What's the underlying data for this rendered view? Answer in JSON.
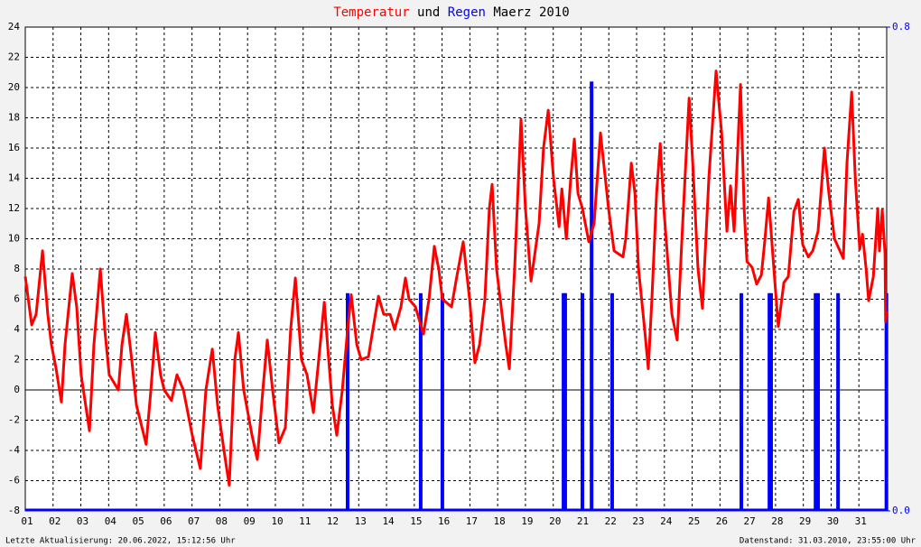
{
  "chart_data": {
    "type": "line",
    "title_series": [
      0,
      1
    ],
    "title_join": "und",
    "title": "Maerz 2010",
    "footer_left": "Letzte Aktualisierung: 20.06.2022, 15:12:56 Uhr",
    "footer_right": "Datenstand: 31.03.2010, 23:55:00 Uhr",
    "xlim": [
      1,
      32
    ],
    "xticks": [
      {
        "value": 1,
        "label": "01"
      },
      {
        "value": 2,
        "label": "02"
      },
      {
        "value": 3,
        "label": "03"
      },
      {
        "value": 4,
        "label": "04"
      },
      {
        "value": 5,
        "label": "05"
      },
      {
        "value": 6,
        "label": "06"
      },
      {
        "value": 7,
        "label": "07"
      },
      {
        "value": 8,
        "label": "08"
      },
      {
        "value": 9,
        "label": "09"
      },
      {
        "value": 10,
        "label": "10"
      },
      {
        "value": 11,
        "label": "11"
      },
      {
        "value": 12,
        "label": "12"
      },
      {
        "value": 13,
        "label": "13"
      },
      {
        "value": 14,
        "label": "14"
      },
      {
        "value": 15,
        "label": "15"
      },
      {
        "value": 16,
        "label": "16"
      },
      {
        "value": 17,
        "label": "17"
      },
      {
        "value": 18,
        "label": "18"
      },
      {
        "value": 19,
        "label": "19"
      },
      {
        "value": 20,
        "label": "20"
      },
      {
        "value": 21,
        "label": "21"
      },
      {
        "value": 22,
        "label": "22"
      },
      {
        "value": 23,
        "label": "23"
      },
      {
        "value": 24,
        "label": "24"
      },
      {
        "value": 25,
        "label": "25"
      },
      {
        "value": 26,
        "label": "26"
      },
      {
        "value": 27,
        "label": "27"
      },
      {
        "value": 28,
        "label": "28"
      },
      {
        "value": 29,
        "label": "29"
      },
      {
        "value": 30,
        "label": "30"
      },
      {
        "value": 31,
        "label": "31"
      }
    ],
    "ylim": [
      -8,
      24
    ],
    "yticks": [
      -8,
      -6,
      -4,
      -2,
      0,
      2,
      4,
      6,
      8,
      10,
      12,
      14,
      16,
      18,
      20,
      22,
      24
    ],
    "y2lim": [
      0,
      0.8
    ],
    "y2ticks": [
      {
        "value": 0,
        "label": "0.0"
      },
      {
        "value": 0.8,
        "label": "0.8"
      }
    ],
    "grid": true,
    "series": [
      {
        "name": "Temperatur",
        "color": "#ff0000",
        "x": [
          1.0,
          1.23,
          1.39,
          1.62,
          1.81,
          1.94,
          2.1,
          2.3,
          2.43,
          2.69,
          2.85,
          3.01,
          3.31,
          3.47,
          3.7,
          3.86,
          4.02,
          4.35,
          4.48,
          4.64,
          4.83,
          5.0,
          5.35,
          5.52,
          5.68,
          5.87,
          6.0,
          6.26,
          6.46,
          6.69,
          7.01,
          7.3,
          7.5,
          7.73,
          7.92,
          8.15,
          8.34,
          8.54,
          8.67,
          8.86,
          9.16,
          9.35,
          9.55,
          9.71,
          9.9,
          10.13,
          10.36,
          10.55,
          10.72,
          10.94,
          11.14,
          11.37,
          11.56,
          11.76,
          11.92,
          12.05,
          12.21,
          12.41,
          12.6,
          12.73,
          12.93,
          13.09,
          13.35,
          13.51,
          13.71,
          13.9,
          14.13,
          14.29,
          14.52,
          14.68,
          14.81,
          15.04,
          15.33,
          15.53,
          15.72,
          15.88,
          16.01,
          16.34,
          16.53,
          16.76,
          16.99,
          17.18,
          17.35,
          17.54,
          17.7,
          17.8,
          17.96,
          18.29,
          18.42,
          18.61,
          18.84,
          19.0,
          19.2,
          19.49,
          19.65,
          19.82,
          20.01,
          20.21,
          20.31,
          20.47,
          20.63,
          20.76,
          20.89,
          21.05,
          21.28,
          21.47,
          21.7,
          21.99,
          22.19,
          22.51,
          22.61,
          22.81,
          22.94,
          23.07,
          23.29,
          23.42,
          23.55,
          23.72,
          23.85,
          23.98,
          24.27,
          24.46,
          24.63,
          24.89,
          25.02,
          25.21,
          25.37,
          25.6,
          25.86,
          26.06,
          26.25,
          26.38,
          26.51,
          26.74,
          26.87,
          26.97,
          27.16,
          27.32,
          27.49,
          27.62,
          27.75,
          27.94,
          28.1,
          28.3,
          28.46,
          28.66,
          28.82,
          28.98,
          29.18,
          29.34,
          29.53,
          29.76,
          29.92,
          30.12,
          30.44,
          30.57,
          30.74,
          30.87,
          31.03,
          31.13,
          31.26,
          31.35,
          31.52,
          31.68,
          31.74,
          31.84,
          31.94,
          31.96,
          31.99
        ],
        "values": [
          7.5,
          4.3,
          5,
          9.2,
          5,
          3,
          1.5,
          -0.8,
          3,
          7.7,
          5.5,
          1,
          -2.7,
          3,
          8,
          4,
          1,
          0,
          3,
          5,
          2,
          -1,
          -3.6,
          0,
          3.8,
          1,
          0,
          -0.7,
          1,
          0,
          -3,
          -5.2,
          0,
          2.7,
          -1,
          -4,
          -6.3,
          2,
          3.8,
          0,
          -3,
          -4.6,
          0,
          3.3,
          0,
          -3.5,
          -2.5,
          4,
          7.4,
          2,
          1,
          -1.5,
          2,
          5.8,
          2,
          -1,
          -3,
          0,
          4,
          6.3,
          3,
          2,
          2.2,
          4,
          6.2,
          5,
          5,
          4,
          5.5,
          7.4,
          6,
          5.5,
          3.7,
          6,
          9.5,
          8,
          6,
          5.5,
          7.5,
          9.8,
          6,
          1.8,
          3,
          6,
          12,
          13.6,
          8,
          3,
          1.4,
          8,
          17.9,
          12,
          7.2,
          11,
          16,
          18.5,
          14,
          10.8,
          13.3,
          10,
          14,
          16.6,
          13,
          12,
          9.8,
          11,
          17,
          12,
          9.2,
          8.8,
          10,
          15,
          13,
          8,
          4,
          1.4,
          6,
          13,
          16.3,
          12,
          5,
          3.3,
          10,
          19.3,
          15,
          8,
          5.4,
          14,
          21.1,
          17,
          10.5,
          13.5,
          10.5,
          20.2,
          12,
          8.5,
          8.1,
          7,
          7.6,
          10,
          12.7,
          8,
          4.2,
          7.1,
          7.5,
          11.8,
          12.6,
          9.6,
          8.8,
          9.2,
          10.5,
          16,
          13,
          10,
          8.7,
          15,
          19.7,
          14,
          9.3,
          10.3,
          8,
          5.9,
          7.5,
          12,
          9.2,
          11.9,
          9,
          4.5,
          5.2
        ]
      },
      {
        "name": "Regen",
        "color": "#0000ff",
        "type": "bar",
        "axis": "y2",
        "x": [
          12.6,
          15.23,
          16.01,
          20.37,
          20.43,
          21.05,
          21.38,
          22.12,
          26.77,
          27.78,
          27.84,
          29.44,
          29.53,
          30.25,
          31.99
        ],
        "values": [
          0.36,
          0.36,
          0.36,
          0.36,
          0.36,
          0.36,
          0.71,
          0.36,
          0.36,
          0.36,
          0.36,
          0.36,
          0.36,
          0.36,
          0.36
        ]
      }
    ]
  }
}
